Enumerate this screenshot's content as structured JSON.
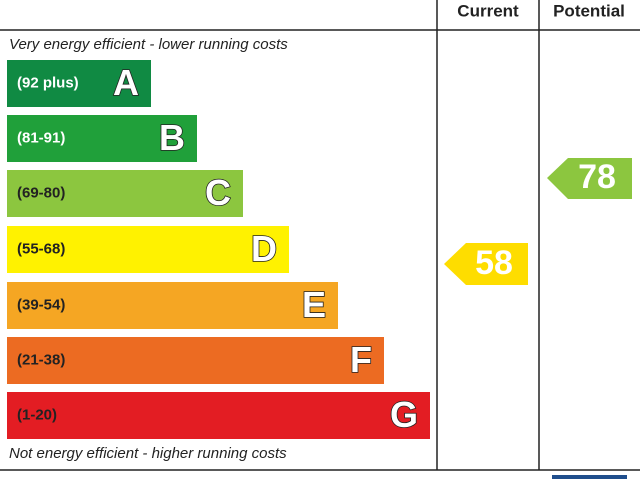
{
  "header": {
    "current": "Current",
    "potential": "Potential"
  },
  "notes": {
    "top": "Very energy efficient - lower running costs",
    "bottom": "Not energy efficient - higher running costs"
  },
  "bands": [
    {
      "range": "(92 plus)",
      "letter": "A",
      "color": "#108a43"
    },
    {
      "range": "(81-91)",
      "letter": "B",
      "color": "#20a03a"
    },
    {
      "range": "(69-80)",
      "letter": "C",
      "color": "#8cc63f"
    },
    {
      "range": "(55-68)",
      "letter": "D",
      "color": "#fff200"
    },
    {
      "range": "(39-54)",
      "letter": "E",
      "color": "#f5a623"
    },
    {
      "range": "(21-38)",
      "letter": "F",
      "color": "#ec6b22"
    },
    {
      "range": "(1-20)",
      "letter": "G",
      "color": "#e31d23"
    }
  ],
  "current": {
    "score": "58"
  },
  "potential": {
    "score": "78"
  }
}
